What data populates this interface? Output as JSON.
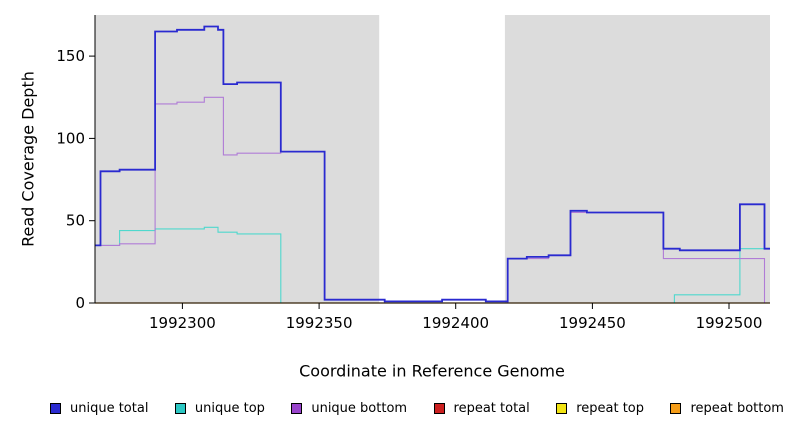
{
  "chart_data": {
    "type": "line",
    "subtype": "step-coverage",
    "title": "",
    "xlabel": "Coordinate in Reference Genome",
    "ylabel": "Read Coverage Depth",
    "xlim": [
      1992268,
      1992515
    ],
    "ylim": [
      0,
      175
    ],
    "xticks": [
      1992300,
      1992350,
      1992400,
      1992450,
      1992500
    ],
    "yticks": [
      0,
      50,
      100,
      150
    ],
    "plot_bg": "#dcdcdc",
    "unmasked_region": [
      1992372,
      1992418
    ],
    "grid": "off",
    "legend_position": "bottom",
    "series": [
      {
        "name": "repeat total",
        "color": "#cc2020",
        "width": 1.1,
        "steps": [
          [
            1992268,
            0
          ]
        ]
      },
      {
        "name": "repeat top",
        "color": "#f2e414",
        "width": 1.1,
        "steps": [
          [
            1992268,
            0
          ]
        ]
      },
      {
        "name": "repeat bottom",
        "color": "#f59d18",
        "width": 1.2,
        "steps": [
          [
            1992268,
            0
          ]
        ]
      },
      {
        "name": "unique top",
        "color": "#4fd8cd",
        "width": 1.1,
        "steps": [
          [
            1992268,
            35
          ],
          [
            1992277,
            44
          ],
          [
            1992290,
            45
          ],
          [
            1992308,
            46
          ],
          [
            1992313,
            43
          ],
          [
            1992320,
            42
          ],
          [
            1992336,
            0
          ],
          [
            1992480,
            5
          ],
          [
            1992504,
            33
          ]
        ]
      },
      {
        "name": "unique bottom",
        "color": "#b07cd6",
        "width": 1.1,
        "steps": [
          [
            1992268,
            35
          ],
          [
            1992277,
            36
          ],
          [
            1992290,
            121
          ],
          [
            1992298,
            122
          ],
          [
            1992308,
            125
          ],
          [
            1992315,
            90
          ],
          [
            1992320,
            91
          ],
          [
            1992336,
            92
          ],
          [
            1992352,
            2
          ],
          [
            1992374,
            0
          ],
          [
            1992419,
            27
          ],
          [
            1992434,
            29
          ],
          [
            1992442,
            55
          ],
          [
            1992476,
            27
          ],
          [
            1992513,
            0
          ]
        ]
      },
      {
        "name": "unique total",
        "color": "#2a2ad0",
        "width": 1.8,
        "steps": [
          [
            1992268,
            35
          ],
          [
            1992270,
            80
          ],
          [
            1992277,
            81
          ],
          [
            1992290,
            165
          ],
          [
            1992298,
            166
          ],
          [
            1992308,
            168
          ],
          [
            1992313,
            166
          ],
          [
            1992315,
            133
          ],
          [
            1992320,
            134
          ],
          [
            1992336,
            92
          ],
          [
            1992352,
            2
          ],
          [
            1992374,
            1
          ],
          [
            1992395,
            2
          ],
          [
            1992411,
            1
          ],
          [
            1992419,
            27
          ],
          [
            1992426,
            28
          ],
          [
            1992434,
            29
          ],
          [
            1992442,
            56
          ],
          [
            1992448,
            55
          ],
          [
            1992476,
            33
          ],
          [
            1992482,
            32
          ],
          [
            1992504,
            60
          ],
          [
            1992513,
            33
          ]
        ]
      }
    ]
  },
  "legend": {
    "items": [
      {
        "label": "unique total",
        "color": "#2a2ad0"
      },
      {
        "label": "unique top",
        "color": "#2cc8c4"
      },
      {
        "label": "unique bottom",
        "color": "#9944cc"
      },
      {
        "label": "repeat total",
        "color": "#cc2020"
      },
      {
        "label": "repeat top",
        "color": "#f2e414"
      },
      {
        "label": "repeat bottom",
        "color": "#f59d18"
      }
    ]
  }
}
